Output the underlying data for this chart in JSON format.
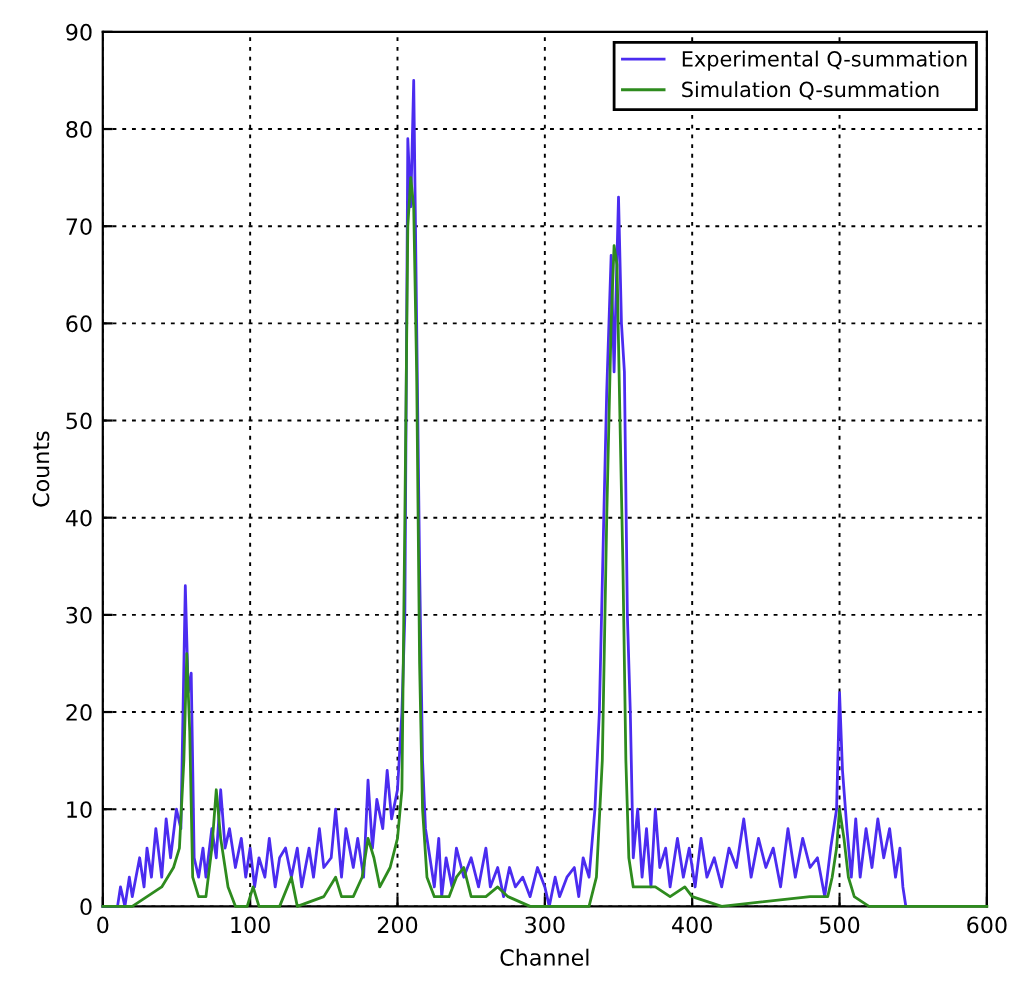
{
  "chart_data": {
    "type": "line",
    "xlabel": "Channel",
    "ylabel": "Counts",
    "xlim": [
      0,
      600
    ],
    "ylim": [
      0,
      90
    ],
    "xticks": [
      0,
      100,
      200,
      300,
      400,
      500,
      600
    ],
    "yticks": [
      0,
      10,
      20,
      30,
      40,
      50,
      60,
      70,
      80,
      90
    ],
    "grid": true,
    "legend": "top right",
    "line_style": "solid",
    "marker": "none",
    "series": [
      {
        "name": "Experimental Q-summation",
        "color": "#4b2cf0",
        "x": [
          0,
          10,
          12,
          15,
          18,
          20,
          25,
          28,
          30,
          33,
          36,
          40,
          43,
          46,
          50,
          53,
          56,
          58,
          60,
          62,
          65,
          68,
          70,
          74,
          77,
          80,
          83,
          86,
          90,
          94,
          97,
          100,
          103,
          106,
          110,
          113,
          117,
          120,
          124,
          128,
          132,
          135,
          140,
          143,
          147,
          150,
          155,
          158,
          162,
          165,
          170,
          173,
          177,
          180,
          183,
          186,
          190,
          193,
          196,
          200,
          203,
          205,
          207,
          209,
          211,
          213,
          215,
          217,
          219,
          222,
          225,
          228,
          230,
          233,
          237,
          240,
          245,
          250,
          255,
          260,
          263,
          268,
          272,
          276,
          280,
          285,
          290,
          295,
          300,
          303,
          307,
          310,
          315,
          320,
          323,
          326,
          330,
          334,
          337,
          340,
          342,
          345,
          347,
          350,
          352,
          354,
          356,
          358,
          360,
          363,
          366,
          369,
          372,
          375,
          378,
          382,
          385,
          390,
          394,
          398,
          402,
          406,
          410,
          415,
          420,
          425,
          430,
          435,
          440,
          445,
          450,
          455,
          460,
          465,
          470,
          475,
          480,
          485,
          490,
          494,
          498,
          500,
          502,
          505,
          508,
          511,
          514,
          518,
          522,
          526,
          530,
          534,
          538,
          541,
          543,
          545
        ],
        "values": [
          0,
          0,
          2,
          0,
          3,
          1,
          5,
          2,
          6,
          3,
          8,
          3,
          9,
          5,
          10,
          8,
          33,
          22,
          24,
          5,
          3,
          6,
          3,
          8,
          5,
          12,
          6,
          8,
          4,
          7,
          3,
          6,
          2,
          5,
          3,
          7,
          2,
          5,
          6,
          3,
          6,
          2,
          6,
          3,
          8,
          4,
          5,
          10,
          3,
          8,
          4,
          7,
          3,
          13,
          6,
          11,
          8,
          14,
          9,
          12,
          20,
          30,
          79,
          72,
          85,
          60,
          35,
          15,
          8,
          5,
          2,
          7,
          1,
          5,
          2,
          6,
          3,
          5,
          2,
          6,
          2,
          4,
          1,
          4,
          2,
          3,
          1,
          4,
          2,
          0,
          3,
          1,
          3,
          4,
          1,
          5,
          3,
          10,
          20,
          40,
          53,
          67,
          55,
          73,
          60,
          55,
          30,
          20,
          5,
          10,
          3,
          8,
          2,
          10,
          4,
          6,
          2,
          7,
          3,
          6,
          2,
          7,
          3,
          5,
          2,
          6,
          4,
          9,
          3,
          7,
          4,
          6,
          2,
          8,
          3,
          7,
          4,
          5,
          1,
          6,
          10,
          22,
          14,
          8,
          3,
          9,
          3,
          8,
          4,
          9,
          5,
          8,
          3,
          6,
          2,
          0
        ]
      },
      {
        "name": "Simulation Q-summation",
        "color": "#2e8b1e",
        "x": [
          0,
          20,
          30,
          40,
          48,
          52,
          55,
          57,
          59,
          61,
          65,
          70,
          74,
          77,
          80,
          85,
          90,
          98,
          102,
          106,
          120,
          128,
          132,
          150,
          158,
          162,
          170,
          176,
          180,
          184,
          188,
          195,
          200,
          203,
          205,
          207,
          209,
          211,
          213,
          215,
          217,
          220,
          225,
          235,
          240,
          245,
          250,
          260,
          268,
          275,
          290,
          330,
          335,
          339,
          342,
          345,
          347,
          349,
          351,
          353,
          355,
          357,
          360,
          365,
          375,
          385,
          395,
          400,
          420,
          480,
          485,
          492,
          495,
          498,
          500,
          503,
          506,
          510,
          520,
          600
        ],
        "values": [
          0,
          0,
          1,
          2,
          4,
          6,
          15,
          26,
          18,
          3,
          1,
          1,
          6,
          12,
          7,
          2,
          0,
          0,
          2,
          0,
          0,
          3,
          0,
          1,
          3,
          1,
          1,
          3,
          7,
          5,
          2,
          4,
          7,
          12,
          40,
          70,
          75,
          72,
          55,
          25,
          10,
          3,
          1,
          1,
          3,
          4,
          1,
          1,
          2,
          1,
          0,
          0,
          3,
          15,
          40,
          60,
          68,
          66,
          50,
          35,
          15,
          5,
          2,
          2,
          2,
          1,
          2,
          1,
          0,
          1,
          1,
          1,
          3,
          6,
          10,
          7,
          3,
          1,
          0,
          0
        ]
      }
    ]
  }
}
